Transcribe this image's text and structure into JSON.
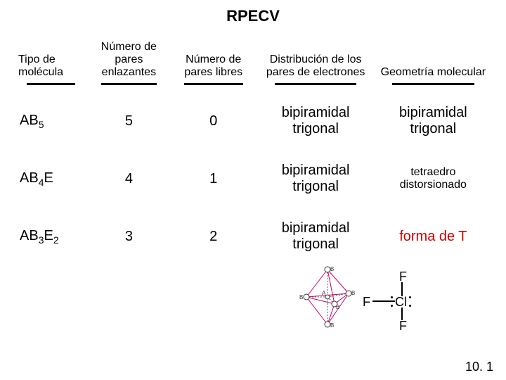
{
  "title": "RPECV",
  "headers": {
    "col1": "Tipo de molécula",
    "col2": "Número de pares enlazantes",
    "col3": "Número de pares libres",
    "col4": "Distribución de los pares de electrones",
    "col5": "Geometría molecular"
  },
  "rows": [
    {
      "type_html": "AB<sub>5</sub>",
      "bonding": "5",
      "lone": "0",
      "distribution": "bipiramidal trigonal",
      "geometry": "bipiramidal trigonal",
      "geometry_color": "#000000"
    },
    {
      "type_html": "AB<sub>4</sub>E",
      "bonding": "4",
      "lone": "1",
      "distribution": "bipiramidal trigonal",
      "geometry": "tetraedro distorsionado",
      "geometry_color": "#000000"
    },
    {
      "type_html": "AB<sub>3</sub>E<sub>2</sub>",
      "bonding": "3",
      "lone": "2",
      "distribution": "bipiramidal trigonal",
      "geometry": "forma de T",
      "geometry_color": "#cc0000"
    }
  ],
  "molecule": {
    "atoms": {
      "top": "F",
      "left": "F",
      "bottom": "F",
      "center": "Cl"
    }
  },
  "bipyramid": {
    "label_top": "B",
    "label_bottom": "B",
    "label_center": "A",
    "label_b1": "B",
    "label_b2": "B",
    "label_b3": "B",
    "edge_color": "#cc0066",
    "node_fill": "#ffffff",
    "node_stroke": "#333333"
  },
  "page_ref": "10. 1"
}
